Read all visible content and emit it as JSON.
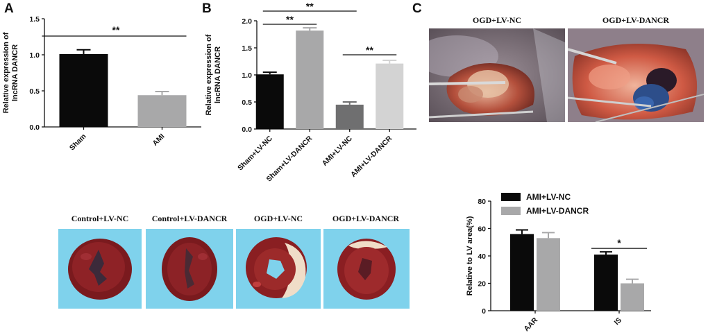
{
  "panels": {
    "a": "A",
    "b": "B",
    "c": "C"
  },
  "colors": {
    "black": "#0a0a0a",
    "gray": "#a8a8a9",
    "dark_gray": "#6f6f70",
    "light_gray": "#d3d3d3",
    "cyan": "#7fd2ec",
    "tissue": "#7a1a1e"
  },
  "chart_data": [
    {
      "id": "A",
      "type": "bar",
      "categories": [
        "Sham",
        "AMI"
      ],
      "values": [
        1.01,
        0.44
      ],
      "errors": [
        0.06,
        0.05
      ],
      "colors": [
        "#0a0a0a",
        "#a8a8a9"
      ],
      "ylabel": [
        "Relative expression of",
        "lncRNA DANCR"
      ],
      "ylim": [
        0,
        1.5
      ],
      "yticks": [
        "0.0",
        "0.5",
        "1.0",
        "1.5"
      ],
      "significance": [
        {
          "from": 0,
          "to": 1,
          "label": "**"
        }
      ]
    },
    {
      "id": "B",
      "type": "bar",
      "categories": [
        "Sham+LV-NC",
        "Sham+LV-DANCR",
        "AMI+LV-NC",
        "AMI+LV-DANCR"
      ],
      "values": [
        1.01,
        1.82,
        0.45,
        1.21
      ],
      "errors": [
        0.04,
        0.05,
        0.05,
        0.06
      ],
      "colors": [
        "#0a0a0a",
        "#a8a8a9",
        "#6f6f70",
        "#d3d3d3"
      ],
      "ylabel": [
        "Relative expression of",
        "lncRNA DANCR"
      ],
      "ylim": [
        0,
        2.0
      ],
      "yticks": [
        "0.0",
        "0.5",
        "1.0",
        "1.5",
        "2.0"
      ],
      "significance": [
        {
          "from": 0,
          "to": 2,
          "label": "**"
        },
        {
          "from": 0,
          "to": 1,
          "label": "**"
        },
        {
          "from": 2,
          "to": 3,
          "label": "**"
        }
      ]
    },
    {
      "id": "C",
      "type": "bar",
      "categories": [
        "AAR",
        "IS"
      ],
      "series": [
        {
          "name": "AMI+LV-NC",
          "values": [
            56,
            41
          ],
          "errors": [
            3,
            2
          ],
          "color": "#0a0a0a"
        },
        {
          "name": "AMI+LV-DANCR",
          "values": [
            53,
            20
          ],
          "errors": [
            4,
            3
          ],
          "color": "#a8a8a9"
        }
      ],
      "ylabel": "Relative to LV area(%)",
      "ylim": [
        0,
        80
      ],
      "yticks": [
        "0",
        "20",
        "40",
        "60",
        "80"
      ],
      "significance": [
        {
          "category": 1,
          "label": "*"
        }
      ]
    }
  ],
  "photos_top": [
    {
      "caption": "OGD+LV-NC"
    },
    {
      "caption": "OGD+LV-DANCR"
    }
  ],
  "photos_bottom": [
    {
      "caption": "Control+LV-NC"
    },
    {
      "caption": "Control+LV-DANCR"
    },
    {
      "caption": "OGD+LV-NC"
    },
    {
      "caption": "OGD+LV-DANCR"
    }
  ]
}
